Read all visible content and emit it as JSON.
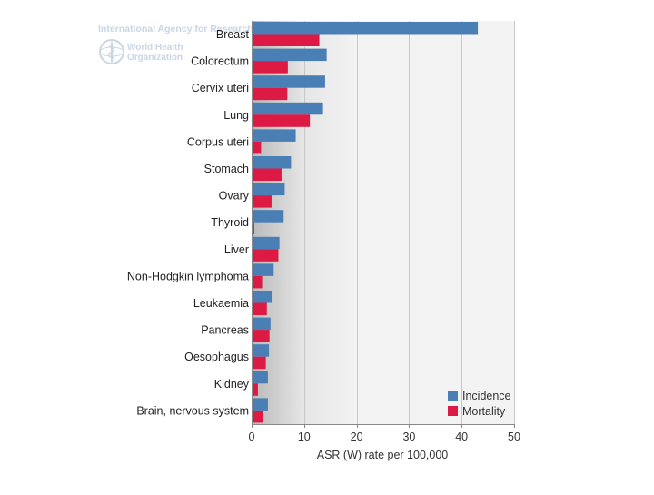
{
  "watermark": {
    "org_line": "International Agency for Research on Cancer",
    "who_line1": "World Health",
    "who_line2": "Organization",
    "icon": "who-emblem-icon",
    "color": "#c9d6e6"
  },
  "chart_data": {
    "type": "bar",
    "orientation": "horizontal",
    "categories": [
      "Breast",
      "Colorectum",
      "Cervix uteri",
      "Lung",
      "Corpus uteri",
      "Stomach",
      "Ovary",
      "Thyroid",
      "Liver",
      "Non-Hodgkin lymphoma",
      "Leukaemia",
      "Pancreas",
      "Oesophagus",
      "Kidney",
      "Brain, nervous system"
    ],
    "series": [
      {
        "name": "Incidence",
        "color": "#4a7fb5",
        "values": [
          43.1,
          14.3,
          14.0,
          13.6,
          8.4,
          7.5,
          6.3,
          6.1,
          5.3,
          4.2,
          3.9,
          3.6,
          3.3,
          3.1,
          3.1
        ]
      },
      {
        "name": "Mortality",
        "color": "#dc1a44",
        "values": [
          12.9,
          6.9,
          6.8,
          11.1,
          1.8,
          5.7,
          3.8,
          0.5,
          5.1,
          2.0,
          2.9,
          3.4,
          2.7,
          1.2,
          2.2
        ]
      }
    ],
    "xlabel": "ASR (W) rate per 100,000",
    "xlim": [
      0,
      50
    ],
    "xticks": [
      0,
      10,
      20,
      30,
      40,
      50
    ],
    "grid": true,
    "legend_position": "bottom-right"
  }
}
